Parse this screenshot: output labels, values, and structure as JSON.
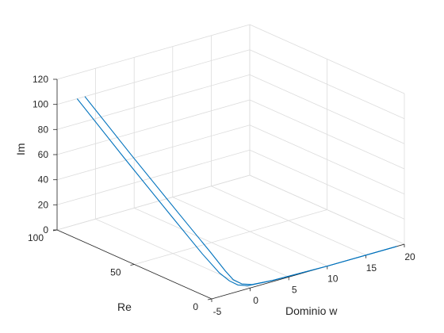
{
  "chart_data": {
    "type": "line",
    "projection": "3d",
    "title": "",
    "xlabel": "Dominio w",
    "ylabel": "Re",
    "zlabel": "Im",
    "xlim": [
      -5,
      20
    ],
    "ylim": [
      0,
      100
    ],
    "zlim": [
      0,
      120
    ],
    "xticks": [
      "-5",
      "0",
      "5",
      "10",
      "15",
      "20"
    ],
    "yticks": [
      "0",
      "50",
      "100"
    ],
    "zticks": [
      "0",
      "20",
      "40",
      "60",
      "80",
      "100",
      "120"
    ],
    "grid": true,
    "line_color": "#0072BD",
    "series": [
      {
        "w": [
          19.0,
          10.0,
          3.0,
          0.5,
          -0.5,
          -1.0,
          -1.2,
          -1.2,
          -1.3,
          -1.4,
          -1.4
        ],
        "re": [
          0.0,
          0.0,
          0.5,
          1.5,
          3.0,
          6.0,
          10.0,
          20.0,
          40.0,
          70.0,
          100.0
        ],
        "im": [
          0.0,
          0.0,
          0.5,
          1.0,
          2.5,
          5.0,
          10.0,
          20.0,
          40.0,
          70.0,
          100.0
        ]
      },
      {
        "w": [
          19.0,
          10.0,
          3.0,
          0.0,
          -1.0,
          -1.5,
          -2.0,
          -2.2,
          -2.3,
          -2.4,
          -2.4
        ],
        "re": [
          0.0,
          0.0,
          0.5,
          1.5,
          3.0,
          6.0,
          10.0,
          20.0,
          40.0,
          70.0,
          100.0
        ],
        "im": [
          0.0,
          0.0,
          0.5,
          1.0,
          2.5,
          5.0,
          10.0,
          20.0,
          40.0,
          70.0,
          100.0
        ]
      }
    ]
  }
}
